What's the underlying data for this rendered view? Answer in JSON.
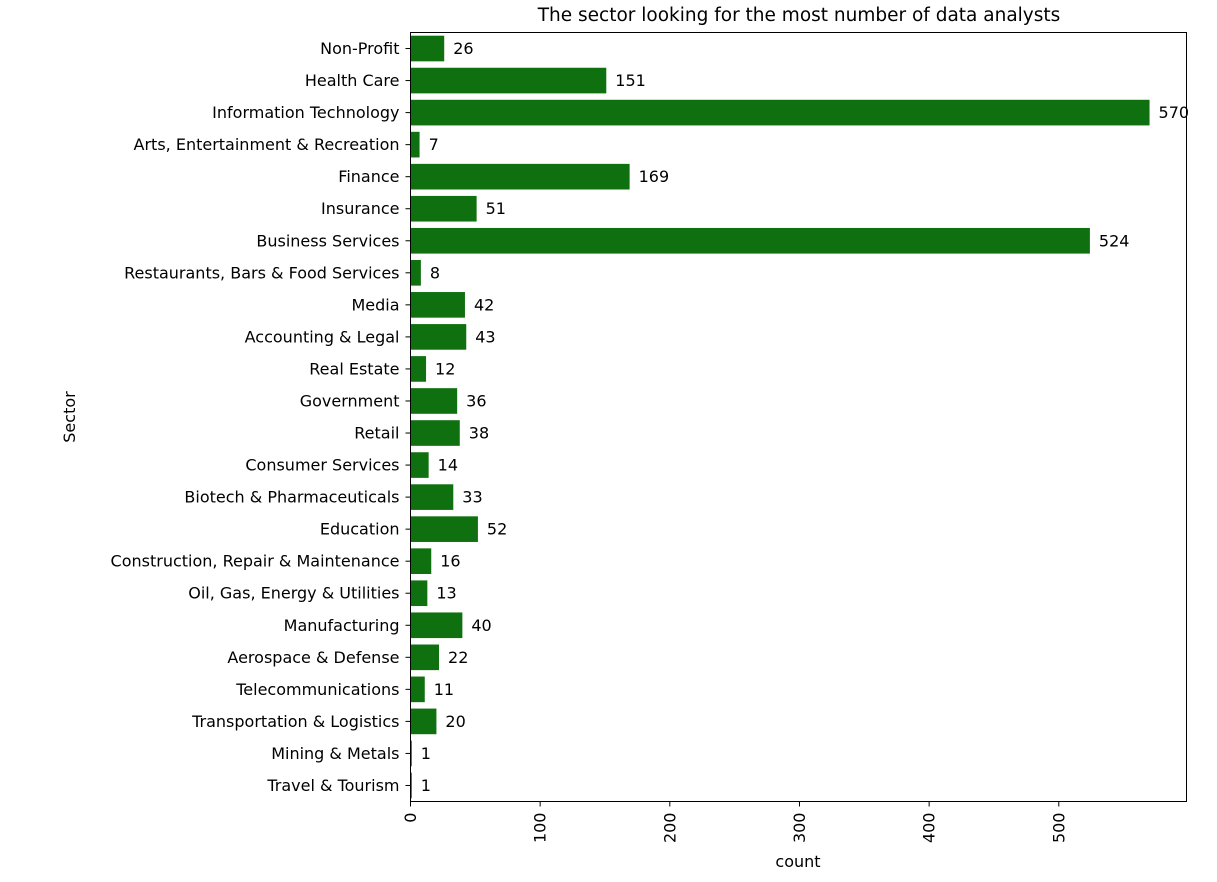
{
  "chart_data": {
    "type": "bar",
    "orientation": "horizontal",
    "title": "The sector looking for the most number of data analysts",
    "xlabel": "count",
    "ylabel": "Sector",
    "categories": [
      "Non-Profit",
      "Health Care",
      "Information Technology",
      "Arts, Entertainment & Recreation",
      "Finance",
      "Insurance",
      "Business Services",
      "Restaurants, Bars & Food Services",
      "Media",
      "Accounting & Legal",
      "Real Estate",
      "Government",
      "Retail",
      "Consumer Services",
      "Biotech & Pharmaceuticals",
      "Education",
      "Construction, Repair & Maintenance",
      "Oil, Gas, Energy & Utilities",
      "Manufacturing",
      "Aerospace & Defense",
      "Telecommunications",
      "Transportation & Logistics",
      "Mining & Metals",
      "Travel & Tourism"
    ],
    "values": [
      26,
      151,
      570,
      7,
      169,
      51,
      524,
      8,
      42,
      43,
      12,
      36,
      38,
      14,
      33,
      52,
      16,
      13,
      40,
      22,
      11,
      20,
      1,
      1
    ],
    "xlim": [
      0,
      598.5
    ],
    "xticks": [
      0,
      100,
      200,
      300,
      400,
      500
    ],
    "grid": false,
    "bar_color": "#0f700f",
    "data_labels": true
  }
}
